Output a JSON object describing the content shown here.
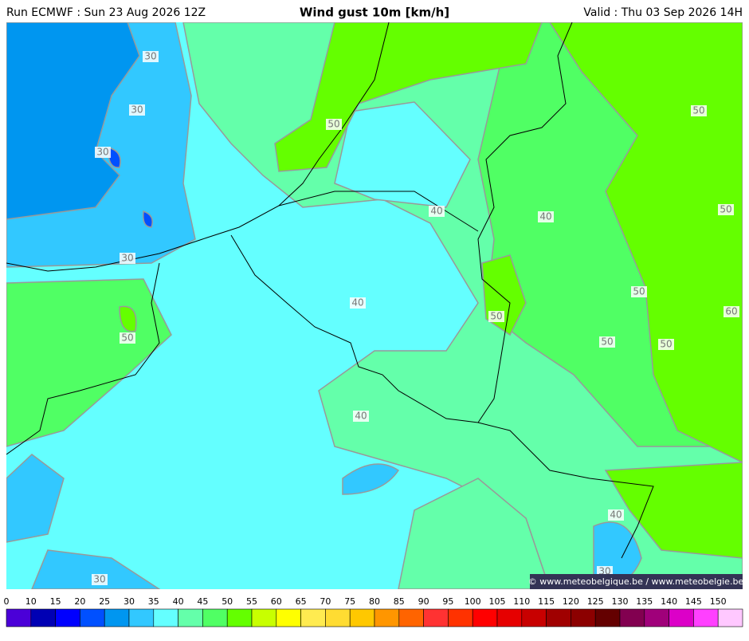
{
  "header": {
    "run": "Run ECMWF : Sun 23 Aug 2026 12Z",
    "title": "Wind gust 10m [km/h]",
    "valid": "Valid : Thu 03 Sep 2026 14H"
  },
  "contour_labels": [
    30,
    30,
    30,
    30,
    30,
    50,
    50,
    50,
    40,
    40,
    40,
    50,
    60,
    50,
    50,
    50,
    50,
    40,
    40,
    30
  ],
  "copyright": "© www.meteobelgique.be / www.meteobelgie.be",
  "legend": {
    "ticks": [
      0,
      10,
      15,
      20,
      25,
      30,
      35,
      40,
      45,
      50,
      55,
      60,
      65,
      70,
      75,
      80,
      85,
      90,
      95,
      100,
      105,
      110,
      115,
      120,
      125,
      130,
      135,
      140,
      145,
      150
    ],
    "colors": [
      "#4b00d8",
      "#0000b4",
      "#0000ff",
      "#0050ff",
      "#0096f0",
      "#32c8ff",
      "#64ffff",
      "#64ffaa",
      "#50ff64",
      "#64ff00",
      "#c8ff00",
      "#ffff00",
      "#ffeb50",
      "#ffdc32",
      "#ffc800",
      "#ff9600",
      "#ff6400",
      "#ff3232",
      "#ff3200",
      "#ff0000",
      "#e60000",
      "#c80000",
      "#a00000",
      "#8c0000",
      "#640000",
      "#820050",
      "#a0007a",
      "#dc00c8",
      "#ff40ff",
      "#ffc8ff"
    ]
  }
}
